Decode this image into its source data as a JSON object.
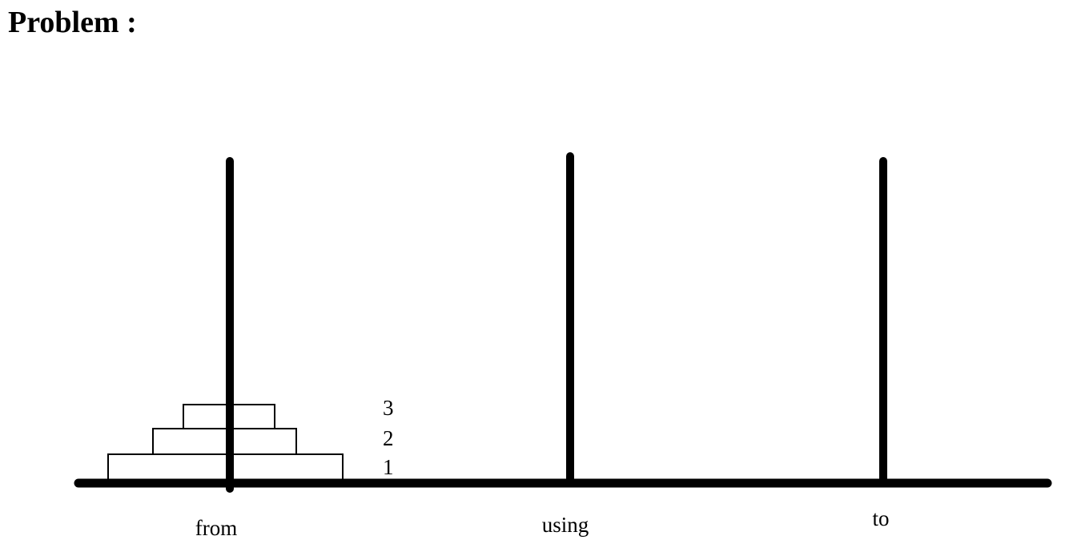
{
  "header": {
    "title": "Problem :"
  },
  "disks": [
    {
      "label": 1
    },
    {
      "label": 2
    },
    {
      "label": 3
    }
  ],
  "pegs": [
    {
      "label": "from"
    },
    {
      "label": "using"
    },
    {
      "label": "to"
    }
  ]
}
